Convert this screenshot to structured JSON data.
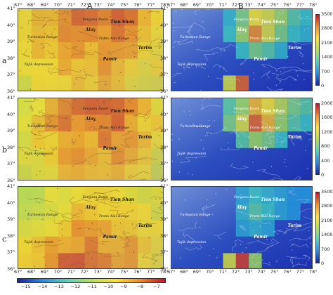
{
  "column_titles": {
    "a": "A",
    "b": "B"
  },
  "row_labels": [
    "a",
    "b",
    "c"
  ],
  "lon_ticks": [
    "67°",
    "68°",
    "69°",
    "70°",
    "71°",
    "72°",
    "73°",
    "74°",
    "75°",
    "76°",
    "77°",
    "78°"
  ],
  "lat_ticks": [
    "41°",
    "40°",
    "39°",
    "38°",
    "37°",
    "36°"
  ],
  "place_names": {
    "fergana": "Fergana Basin",
    "alay": "Alay",
    "tienshan": "Tien Shan",
    "turkestan": "Turkestan Range",
    "transalay": "Trans Alai Range",
    "tarim": "Tarim",
    "pamir": "Pamir",
    "tajik": "Tajik depression"
  },
  "colorbars": {
    "A_bottom": [
      "−15",
      "−14",
      "−13",
      "−12",
      "−11",
      "−10",
      "−9",
      "−8",
      "−7"
    ],
    "B_row_a": [
      "3500",
      "2800",
      "2100",
      "1400",
      "700",
      "0"
    ],
    "B_row_b": [
      "2000",
      "1600",
      "1200",
      "800",
      "400",
      "0"
    ],
    "B_row_c": [
      "3500",
      "2800",
      "2100",
      "1400",
      "700",
      "0"
    ]
  },
  "colors": {
    "diverging_low": "#1a22a8",
    "diverging_mid": "#ffee33",
    "diverging_high": "#c8102a",
    "terrain_low": "#8fd14f",
    "terrain_high": "#c4b089"
  }
}
